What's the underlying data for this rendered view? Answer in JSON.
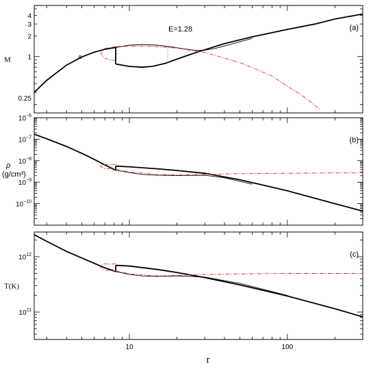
{
  "chart_data": [
    {
      "panel": "a",
      "type": "line",
      "tag": "(a)",
      "annotation": "E=1.28",
      "ylabel": "M",
      "xscale": "log",
      "yscale": "log",
      "xlim": [
        2.5,
        300
      ],
      "ylim": [
        0.15,
        5.6
      ],
      "yticks": [
        {
          "v": 0.25,
          "label": "0.25"
        },
        {
          "v": 1,
          "label": "1"
        },
        {
          "v": 2,
          "label": "2"
        },
        {
          "v": 3,
          "label": "3"
        },
        {
          "v": 4,
          "label": "4"
        }
      ],
      "marker": {
        "x": 4.88,
        "y": 0.98
      },
      "series": [
        {
          "style": "main",
          "points": [
            [
              2.5,
              0.3
            ],
            [
              3,
              0.45
            ],
            [
              4,
              0.75
            ],
            [
              5,
              0.99
            ],
            [
              6,
              1.16
            ],
            [
              7,
              1.28
            ],
            [
              8.2,
              1.36
            ]
          ]
        },
        {
          "style": "main",
          "points": [
            [
              8.2,
              1.36
            ],
            [
              8.2,
              0.78
            ]
          ]
        },
        {
          "style": "main",
          "points": [
            [
              8.2,
              0.78
            ],
            [
              10,
              0.72
            ],
            [
              12,
              0.7
            ],
            [
              14,
              0.72
            ],
            [
              17,
              0.8
            ],
            [
              20,
              0.92
            ],
            [
              25,
              1.1
            ],
            [
              30,
              1.26
            ],
            [
              40,
              1.55
            ],
            [
              60,
              1.95
            ],
            [
              100,
              2.5
            ],
            [
              150,
              3.0
            ],
            [
              200,
              3.55
            ],
            [
              300,
              4.2
            ]
          ]
        },
        {
          "style": "thin",
          "points": [
            [
              8.2,
              1.36
            ],
            [
              10,
              1.47
            ],
            [
              12,
              1.5
            ],
            [
              15,
              1.47
            ],
            [
              18,
              1.4
            ],
            [
              22,
              1.3
            ],
            [
              26,
              1.24
            ],
            [
              30,
              1.24
            ],
            [
              35,
              1.32
            ],
            [
              40,
              1.43
            ],
            [
              60,
              1.85
            ]
          ]
        },
        {
          "style": "red",
          "points": [
            [
              8.2,
              1.4
            ],
            [
              7,
              1.32
            ],
            [
              6.6,
              1.12
            ],
            [
              6.9,
              0.96
            ],
            [
              7.5,
              0.9
            ],
            [
              8.2,
              0.87
            ]
          ]
        },
        {
          "style": "red",
          "points": [
            [
              8.2,
              1.4
            ],
            [
              10,
              1.42
            ],
            [
              12,
              1.43
            ],
            [
              15,
              1.4
            ],
            [
              20,
              1.33
            ],
            [
              30,
              1.15
            ],
            [
              50,
              0.82
            ],
            [
              80,
              0.52
            ],
            [
              100,
              0.37
            ],
            [
              130,
              0.25
            ],
            [
              160,
              0.17
            ]
          ]
        },
        {
          "style": "mag",
          "points": [
            [
              17.5,
              1.38
            ],
            [
              17.5,
              0.81
            ]
          ]
        }
      ]
    },
    {
      "panel": "b",
      "type": "line",
      "tag": "(b)",
      "ylabel": "ρ",
      "ylabel_sub": "(g/cm³)",
      "xscale": "log",
      "yscale": "log",
      "xlim": [
        2.5,
        300
      ],
      "ylim": [
        1e-11,
        1e-06
      ],
      "yticks": [
        {
          "v": 1e-10,
          "base": "10",
          "exp": "−10"
        },
        {
          "v": 1e-09,
          "base": "10",
          "exp": "−9"
        },
        {
          "v": 1e-08,
          "base": "10",
          "exp": "−8"
        },
        {
          "v": 1e-07,
          "base": "10",
          "exp": "−7"
        },
        {
          "v": 1e-06,
          "base": "10",
          "exp": "−6"
        }
      ],
      "series": [
        {
          "style": "main",
          "points": [
            [
              2.5,
              1.7e-07
            ],
            [
              3,
              1.05e-07
            ],
            [
              4,
              4.6e-08
            ],
            [
              5,
              2.2e-08
            ],
            [
              6,
              1.15e-08
            ],
            [
              7,
              6.3e-09
            ],
            [
              8.2,
              3.6e-09
            ]
          ]
        },
        {
          "style": "main",
          "points": [
            [
              8.2,
              3.6e-09
            ],
            [
              8.2,
              5.6e-09
            ]
          ]
        },
        {
          "style": "main",
          "points": [
            [
              8.2,
              5.6e-09
            ],
            [
              10,
              5.2e-09
            ],
            [
              15,
              4.2e-09
            ],
            [
              20,
              3.5e-09
            ],
            [
              30,
              2.6e-09
            ],
            [
              50,
              1.3e-09
            ],
            [
              100,
              4e-10
            ],
            [
              200,
              1e-10
            ],
            [
              300,
              4.5e-11
            ]
          ]
        },
        {
          "style": "thin",
          "points": [
            [
              8.2,
              3.6e-09
            ],
            [
              10,
              2.8e-09
            ],
            [
              12,
              2.3e-09
            ],
            [
              15,
              2.1e-09
            ],
            [
              20,
              2.05e-09
            ],
            [
              30,
              2.1e-09
            ],
            [
              40,
              1.6e-09
            ],
            [
              60,
              8e-10
            ]
          ]
        },
        {
          "style": "red",
          "points": [
            [
              8.2,
              6.6e-09
            ],
            [
              6.8,
              6.6e-09
            ],
            [
              6.5,
              5.6e-09
            ],
            [
              7,
              4.3e-09
            ],
            [
              8.2,
              4e-09
            ]
          ]
        },
        {
          "style": "red",
          "points": [
            [
              8.2,
              4e-09
            ],
            [
              10,
              3e-09
            ],
            [
              15,
              2.3e-09
            ],
            [
              20,
              2.2e-09
            ],
            [
              30,
              2.3e-09
            ],
            [
              50,
              2.5e-09
            ],
            [
              100,
              2.6e-09
            ],
            [
              200,
              2.7e-09
            ],
            [
              300,
              2.7e-09
            ]
          ]
        }
      ]
    },
    {
      "panel": "c",
      "type": "line",
      "tag": "(c)",
      "ylabel": "T(K)",
      "xlabel": "r",
      "xscale": "log",
      "yscale": "log",
      "xlim": [
        2.5,
        300
      ],
      "ylim": [
        32000000000.0,
        2800000000000.0
      ],
      "xticks": [
        {
          "v": 10,
          "label": "10"
        },
        {
          "v": 100,
          "label": "100"
        }
      ],
      "yticks": [
        {
          "v": 100000000000.0,
          "base": "10",
          "exp": "11"
        },
        {
          "v": 1000000000000.0,
          "base": "10",
          "exp": "12"
        }
      ],
      "series": [
        {
          "style": "main",
          "points": [
            [
              2.5,
              2500000000000.0
            ],
            [
              3,
              1900000000000.0
            ],
            [
              4,
              1250000000000.0
            ],
            [
              5,
              950000000000.0
            ],
            [
              6,
              760000000000.0
            ],
            [
              7,
              630000000000.0
            ],
            [
              8.2,
              540000000000.0
            ]
          ]
        },
        {
          "style": "main",
          "points": [
            [
              8.2,
              540000000000.0
            ],
            [
              8.2,
              700000000000.0
            ]
          ]
        },
        {
          "style": "main",
          "points": [
            [
              8.2,
              700000000000.0
            ],
            [
              10,
              680000000000.0
            ],
            [
              15,
              590000000000.0
            ],
            [
              20,
              520000000000.0
            ],
            [
              30,
              420000000000.0
            ],
            [
              50,
              310000000000.0
            ],
            [
              100,
              195000000000.0
            ],
            [
              200,
              115000000000.0
            ],
            [
              300,
              82000000000.0
            ]
          ]
        },
        {
          "style": "thin",
          "points": [
            [
              8.2,
              540000000000.0
            ],
            [
              10,
              480000000000.0
            ],
            [
              12,
              450000000000.0
            ],
            [
              15,
              440000000000.0
            ],
            [
              20,
              450000000000.0
            ],
            [
              30,
              430000000000.0
            ],
            [
              50,
              330000000000.0
            ],
            [
              100,
              200000000000.0
            ]
          ]
        },
        {
          "style": "red",
          "points": [
            [
              8.2,
              740000000000.0
            ],
            [
              6.8,
              740000000000.0
            ],
            [
              6.5,
              660000000000.0
            ],
            [
              7,
              570000000000.0
            ],
            [
              8.2,
              560000000000.0
            ]
          ]
        },
        {
          "style": "red",
          "points": [
            [
              8.2,
              560000000000.0
            ],
            [
              10,
              490000000000.0
            ],
            [
              15,
              450000000000.0
            ],
            [
              20,
              460000000000.0
            ],
            [
              30,
              480000000000.0
            ],
            [
              50,
              490000000000.0
            ],
            [
              100,
              500000000000.0
            ],
            [
              200,
              500000000000.0
            ],
            [
              300,
              500000000000.0
            ]
          ]
        }
      ]
    }
  ]
}
